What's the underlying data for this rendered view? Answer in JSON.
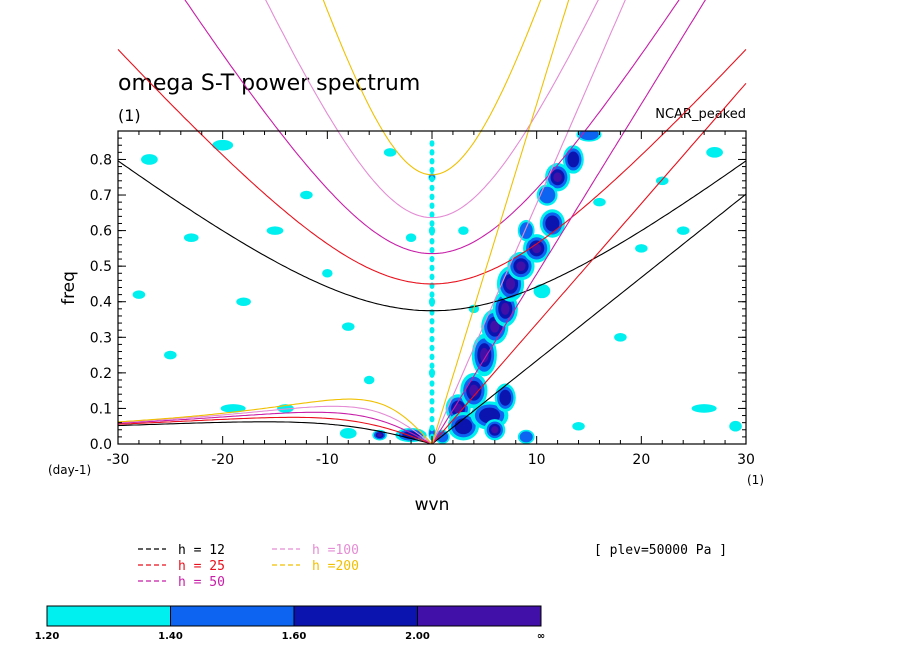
{
  "chart_data": {
    "type": "contour",
    "title": "omega S-T power spectrum",
    "subtitle_left": "(1)",
    "subtitle_right": "NCAR_peaked",
    "xlabel": "wvn",
    "ylabel": "freq",
    "x_unit_label": "(1)",
    "y_unit_label": "(day-1)",
    "xlim": [
      -30,
      30
    ],
    "ylim": [
      0,
      0.88
    ],
    "x_ticks": [
      -30,
      -20,
      -10,
      0,
      10,
      20,
      30
    ],
    "x_tick_labels": [
      "-30",
      "-20",
      "-10",
      "0",
      "10",
      "20",
      "30"
    ],
    "y_ticks": [
      0.0,
      0.1,
      0.2,
      0.3,
      0.4,
      0.5,
      0.6,
      0.7,
      0.8
    ],
    "y_tick_labels": [
      "0.0",
      "0.1",
      "0.2",
      "0.3",
      "0.4",
      "0.5",
      "0.6",
      "0.7",
      "0.8"
    ],
    "annotation": "[ plev=50000 Pa ]",
    "dispersion_legend": [
      {
        "label": "h = 12",
        "h": 12,
        "color": "#000000"
      },
      {
        "label": "h = 25",
        "h": 25,
        "color": "#e8101c"
      },
      {
        "label": "h = 50",
        "h": 50,
        "color": "#c81ea8"
      },
      {
        "label": "h =100",
        "h": 100,
        "color": "#e48cd4"
      },
      {
        "label": "h =200",
        "h": 200,
        "color": "#f0c000"
      }
    ],
    "colorbar": {
      "colors": [
        "#00f0f0",
        "#0c64f0",
        "#0c14b0",
        "#4010a8"
      ],
      "boundary_labels": [
        "1.20",
        "1.40",
        "1.60",
        "2.00",
        "∞"
      ]
    },
    "blobs": [
      {
        "x": 0,
        "y": 0.03,
        "rx": 0.35,
        "ry": 0.02,
        "level": 1
      },
      {
        "x": -2,
        "y": 0.025,
        "rx": 1.5,
        "ry": 0.02,
        "level": 2
      },
      {
        "x": -5,
        "y": 0.025,
        "rx": 0.7,
        "ry": 0.015,
        "level": 3
      },
      {
        "x": -8,
        "y": 0.03,
        "rx": 0.8,
        "ry": 0.015,
        "level": 0
      },
      {
        "x": 1,
        "y": 0.02,
        "rx": 0.7,
        "ry": 0.02,
        "level": 1
      },
      {
        "x": 2.5,
        "y": 0.1,
        "rx": 1.2,
        "ry": 0.04,
        "level": 3
      },
      {
        "x": 3,
        "y": 0.05,
        "rx": 1.5,
        "ry": 0.04,
        "level": 2
      },
      {
        "x": 4,
        "y": 0.15,
        "rx": 1.3,
        "ry": 0.05,
        "level": 3
      },
      {
        "x": 5.5,
        "y": 0.08,
        "rx": 1.8,
        "ry": 0.04,
        "level": 2
      },
      {
        "x": 5,
        "y": 0.25,
        "rx": 1.2,
        "ry": 0.06,
        "level": 3
      },
      {
        "x": 6,
        "y": 0.33,
        "rx": 1.3,
        "ry": 0.05,
        "level": 3
      },
      {
        "x": 7,
        "y": 0.38,
        "rx": 1.2,
        "ry": 0.05,
        "level": 3
      },
      {
        "x": 7.5,
        "y": 0.45,
        "rx": 1.3,
        "ry": 0.05,
        "level": 3
      },
      {
        "x": 8.5,
        "y": 0.5,
        "rx": 1.3,
        "ry": 0.04,
        "level": 3
      },
      {
        "x": 10,
        "y": 0.55,
        "rx": 1.3,
        "ry": 0.04,
        "level": 3
      },
      {
        "x": 11.5,
        "y": 0.62,
        "rx": 1.2,
        "ry": 0.04,
        "level": 2
      },
      {
        "x": 12,
        "y": 0.75,
        "rx": 1.2,
        "ry": 0.04,
        "level": 3
      },
      {
        "x": 13.5,
        "y": 0.8,
        "rx": 1.0,
        "ry": 0.04,
        "level": 2
      },
      {
        "x": 6,
        "y": 0.04,
        "rx": 1.0,
        "ry": 0.03,
        "level": 3
      },
      {
        "x": 7,
        "y": 0.13,
        "rx": 1.0,
        "ry": 0.04,
        "level": 2
      },
      {
        "x": 9,
        "y": 0.02,
        "rx": 0.8,
        "ry": 0.02,
        "level": 1
      },
      {
        "x": 11,
        "y": 0.7,
        "rx": 1.0,
        "ry": 0.03,
        "level": 1
      },
      {
        "x": 15,
        "y": 0.87,
        "rx": 1.2,
        "ry": 0.02,
        "level": 1
      },
      {
        "x": 9,
        "y": 0.6,
        "rx": 0.8,
        "ry": 0.03,
        "level": 1
      },
      {
        "x": 10.5,
        "y": 0.43,
        "rx": 0.8,
        "ry": 0.02,
        "level": 0
      },
      {
        "x": -20,
        "y": 0.84,
        "rx": 1.0,
        "ry": 0.015,
        "level": 0
      },
      {
        "x": -27,
        "y": 0.8,
        "rx": 0.8,
        "ry": 0.015,
        "level": 0
      },
      {
        "x": -15,
        "y": 0.6,
        "rx": 0.8,
        "ry": 0.012,
        "level": 0
      },
      {
        "x": -18,
        "y": 0.4,
        "rx": 0.7,
        "ry": 0.012,
        "level": 0
      },
      {
        "x": -8,
        "y": 0.33,
        "rx": 0.6,
        "ry": 0.012,
        "level": 0
      },
      {
        "x": -12,
        "y": 0.7,
        "rx": 0.6,
        "ry": 0.012,
        "level": 0
      },
      {
        "x": -4,
        "y": 0.82,
        "rx": 0.6,
        "ry": 0.012,
        "level": 0
      },
      {
        "x": -23,
        "y": 0.58,
        "rx": 0.7,
        "ry": 0.012,
        "level": 0
      },
      {
        "x": -28,
        "y": 0.42,
        "rx": 0.6,
        "ry": 0.012,
        "level": 0
      },
      {
        "x": -19,
        "y": 0.1,
        "rx": 1.2,
        "ry": 0.012,
        "level": 0
      },
      {
        "x": -14,
        "y": 0.1,
        "rx": 0.8,
        "ry": 0.012,
        "level": 0
      },
      {
        "x": -6,
        "y": 0.18,
        "rx": 0.5,
        "ry": 0.012,
        "level": 0
      },
      {
        "x": -2,
        "y": 0.58,
        "rx": 0.5,
        "ry": 0.012,
        "level": 0
      },
      {
        "x": 20,
        "y": 0.55,
        "rx": 0.6,
        "ry": 0.012,
        "level": 0
      },
      {
        "x": 24,
        "y": 0.6,
        "rx": 0.6,
        "ry": 0.012,
        "level": 0
      },
      {
        "x": 27,
        "y": 0.82,
        "rx": 0.8,
        "ry": 0.015,
        "level": 0
      },
      {
        "x": 22,
        "y": 0.74,
        "rx": 0.6,
        "ry": 0.012,
        "level": 0
      },
      {
        "x": 18,
        "y": 0.3,
        "rx": 0.6,
        "ry": 0.012,
        "level": 0
      },
      {
        "x": 26,
        "y": 0.1,
        "rx": 1.2,
        "ry": 0.012,
        "level": 0
      },
      {
        "x": 29,
        "y": 0.05,
        "rx": 0.6,
        "ry": 0.015,
        "level": 0
      },
      {
        "x": 14,
        "y": 0.05,
        "rx": 0.6,
        "ry": 0.012,
        "level": 0
      },
      {
        "x": 16,
        "y": 0.68,
        "rx": 0.6,
        "ry": 0.012,
        "level": 0
      },
      {
        "x": 3,
        "y": 0.6,
        "rx": 0.5,
        "ry": 0.012,
        "level": 0
      },
      {
        "x": -25,
        "y": 0.25,
        "rx": 0.6,
        "ry": 0.012,
        "level": 0
      },
      {
        "x": -10,
        "y": 0.48,
        "rx": 0.5,
        "ry": 0.012,
        "level": 0
      },
      {
        "x": 4,
        "y": 0.38,
        "rx": 0.5,
        "ry": 0.012,
        "level": 0
      },
      {
        "x": 0,
        "y": 0.2,
        "rx": 0.3,
        "ry": 0.012,
        "level": 0
      },
      {
        "x": 0,
        "y": 0.4,
        "rx": 0.3,
        "ry": 0.012,
        "level": 0
      },
      {
        "x": 0,
        "y": 0.6,
        "rx": 0.3,
        "ry": 0.012,
        "level": 0
      },
      {
        "x": 0,
        "y": 0.75,
        "rx": 0.35,
        "ry": 0.012,
        "level": 1
      }
    ]
  }
}
